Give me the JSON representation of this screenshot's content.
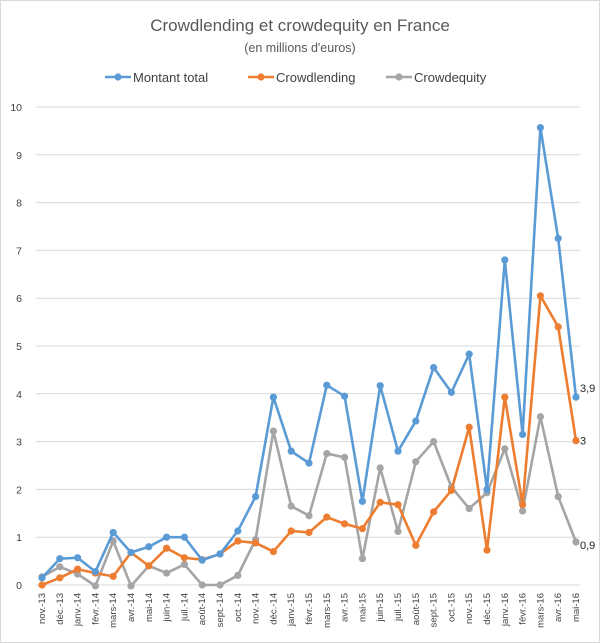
{
  "chart_data": {
    "type": "line",
    "title": "Crowdlending et crowdequity en France",
    "subtitle": "(en millions d'euros)",
    "xlabel": "",
    "ylabel": "",
    "ylim": [
      0,
      10
    ],
    "yticks": [
      "0",
      "1",
      "2",
      "3",
      "4",
      "5",
      "6",
      "7",
      "8",
      "9",
      "10"
    ],
    "grid": true,
    "legend_position": "top",
    "categories": [
      "nov.-13",
      "déc.-13",
      "janv.-14",
      "févr.-14",
      "mars-14",
      "avr.-14",
      "mai-14",
      "juin-14",
      "juil.-14",
      "août-14",
      "sept.-14",
      "oct.-14",
      "nov.-14",
      "déc.-14",
      "janv.-15",
      "févr.-15",
      "mars-15",
      "avr.-15",
      "mai-15",
      "juin-15",
      "juil.-15",
      "août-15",
      "sept.-15",
      "oct.-15",
      "nov.-15",
      "déc.-15",
      "janv.-16",
      "févr.-16",
      "mars-16",
      "avr.-16",
      "mai-16"
    ],
    "series": [
      {
        "name": "Montant total",
        "color": "#5b9bd5",
        "values": [
          0.15,
          0.55,
          0.57,
          0.28,
          1.1,
          0.68,
          0.8,
          1.0,
          1.0,
          0.52,
          0.65,
          1.13,
          1.85,
          3.93,
          2.8,
          2.55,
          4.18,
          3.95,
          1.75,
          4.17,
          2.8,
          3.43,
          4.55,
          4.03,
          4.83,
          2.0,
          6.8,
          3.15,
          9.57,
          7.25,
          3.93
        ],
        "end_label": "3,9"
      },
      {
        "name": "Crowdlending",
        "color": "#ed7d31",
        "values": [
          0.0,
          0.15,
          0.33,
          0.25,
          0.18,
          0.68,
          0.4,
          0.77,
          0.57,
          0.53,
          0.65,
          0.92,
          0.88,
          0.7,
          1.13,
          1.1,
          1.42,
          1.28,
          1.18,
          1.73,
          1.68,
          0.83,
          1.53,
          1.98,
          3.3,
          0.73,
          3.93,
          1.68,
          6.05,
          5.4,
          3.02
        ],
        "end_label": "3"
      },
      {
        "name": "Crowdequity",
        "color": "#a5a5a5",
        "values": [
          0.17,
          0.38,
          0.23,
          -0.02,
          0.92,
          -0.02,
          0.4,
          0.25,
          0.43,
          0.0,
          0.0,
          0.2,
          0.95,
          3.22,
          1.65,
          1.45,
          2.75,
          2.67,
          0.55,
          2.45,
          1.12,
          2.58,
          3.0,
          2.05,
          1.6,
          1.93,
          2.85,
          1.55,
          3.52,
          1.85,
          0.9
        ],
        "end_label": "0,9"
      }
    ]
  }
}
